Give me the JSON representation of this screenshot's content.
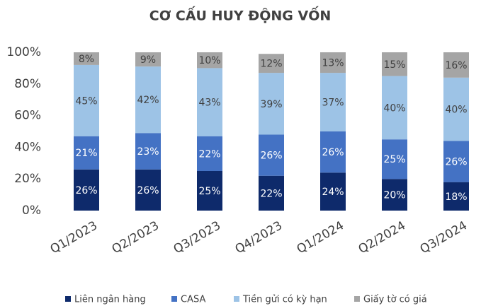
{
  "chart_data": {
    "type": "stacked_bar",
    "title": "CƠ CẤU HUY ĐỘNG VỐN",
    "categories": [
      "Q1/2023",
      "Q2/2023",
      "Q3/2023",
      "Q4/2023",
      "Q1/2024",
      "Q2/2024",
      "Q3/2024"
    ],
    "series": [
      {
        "name": "Liên ngân hàng",
        "color": "#0e2a6b",
        "label_color": "#ffffff",
        "values": [
          26,
          26,
          25,
          22,
          24,
          20,
          18
        ],
        "value_labels": [
          "26%",
          "26%",
          "25%",
          "22%",
          "24%",
          "20%",
          "18%"
        ]
      },
      {
        "name": "CASA",
        "color": "#4472c4",
        "label_color": "#ffffff",
        "values": [
          21,
          23,
          22,
          26,
          26,
          25,
          26
        ],
        "value_labels": [
          "21%",
          "23%",
          "22%",
          "26%",
          "26%",
          "25%",
          "26%"
        ]
      },
      {
        "name": "Tiền gửi có kỳ hạn",
        "color": "#9dc3e6",
        "label_color": "#404040",
        "values": [
          45,
          42,
          43,
          39,
          37,
          40,
          40
        ],
        "value_labels": [
          "45%",
          "42%",
          "43%",
          "39%",
          "37%",
          "40%",
          "40%"
        ]
      },
      {
        "name": "Giấy tờ có giá",
        "color": "#a5a5a5",
        "label_color": "#404040",
        "values": [
          8,
          9,
          10,
          12,
          13,
          15,
          16
        ],
        "value_labels": [
          "8%",
          "9%",
          "10%",
          "12%",
          "13%",
          "15%",
          "16%"
        ]
      }
    ],
    "ylim": [
      0,
      100
    ],
    "yticks": [
      {
        "value": 0,
        "label": "0%"
      },
      {
        "value": 20,
        "label": "20%"
      },
      {
        "value": 40,
        "label": "40%"
      },
      {
        "value": 60,
        "label": "60%"
      },
      {
        "value": 80,
        "label": "80%"
      },
      {
        "value": 100,
        "label": "100%"
      }
    ],
    "legend": "bottom"
  }
}
